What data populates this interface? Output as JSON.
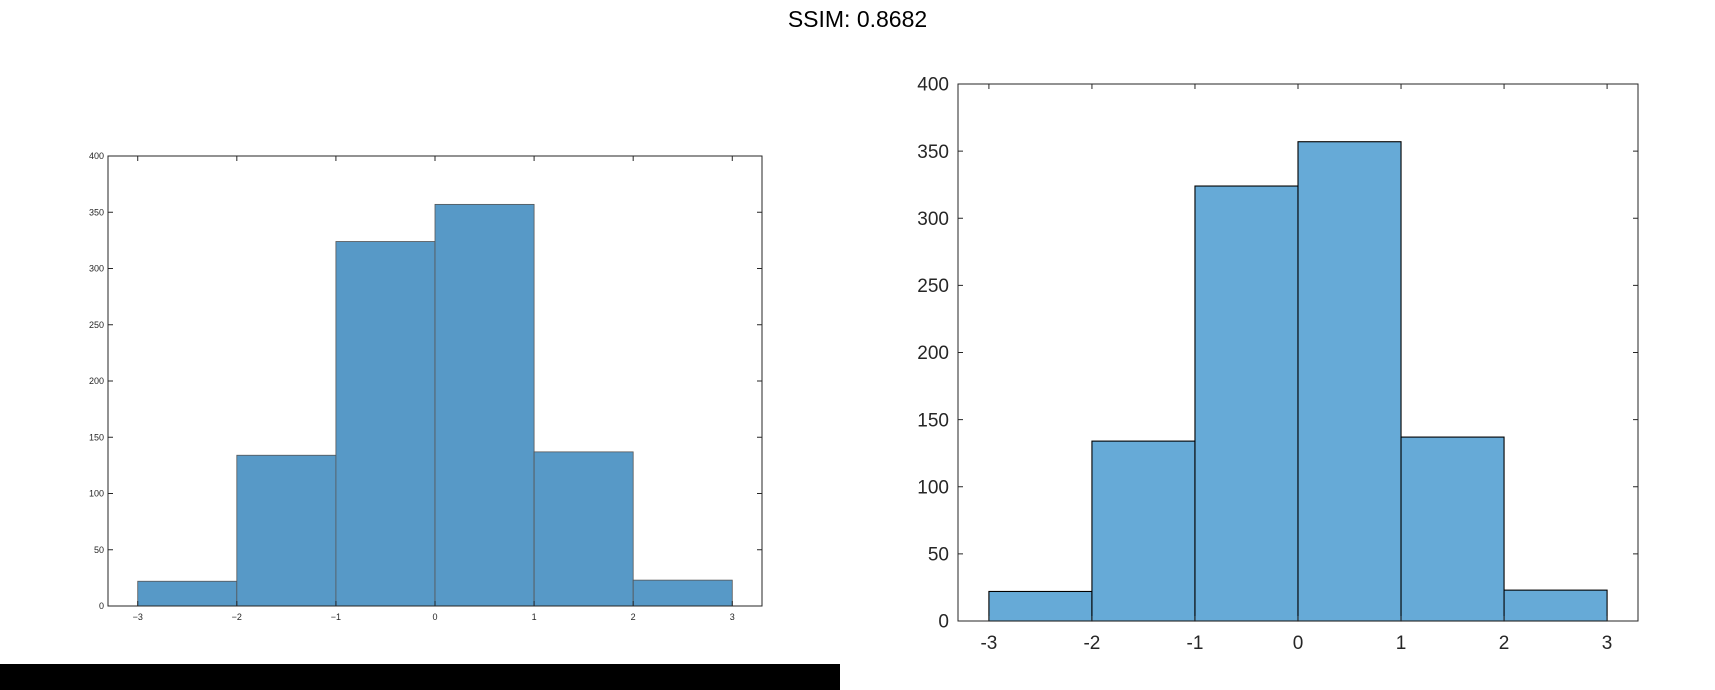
{
  "title": "SSIM: 0.8682",
  "colors": {
    "bar_left": "#5799C7",
    "bar_right": "#66AAD7",
    "edge_left": "#555555",
    "edge_right": "#000000",
    "axis": "#262626"
  },
  "chart_data": [
    {
      "type": "bar",
      "panel": "left",
      "bin_edges": [
        -3,
        -2,
        -1,
        0,
        1,
        2,
        3
      ],
      "values": [
        22,
        134,
        324,
        357,
        137,
        23
      ],
      "xlim": [
        -3.3,
        3.3
      ],
      "ylim": [
        0,
        400
      ],
      "xticks": [
        -3,
        -2,
        -1,
        0,
        1,
        2,
        3
      ],
      "xtick_labels": [
        "−3",
        "−2",
        "−1",
        "0",
        "1",
        "2",
        "3"
      ],
      "yticks": [
        0,
        50,
        100,
        150,
        200,
        250,
        300,
        350,
        400
      ],
      "ytick_labels": [
        "0",
        "50",
        "100",
        "150",
        "200",
        "250",
        "300",
        "350",
        "400"
      ],
      "grid": false
    },
    {
      "type": "bar",
      "panel": "right",
      "bin_edges": [
        -3,
        -2,
        -1,
        0,
        1,
        2,
        3
      ],
      "values": [
        22,
        134,
        324,
        357,
        137,
        23
      ],
      "xlim": [
        -3.3,
        3.3
      ],
      "ylim": [
        0,
        400
      ],
      "xticks": [
        -3,
        -2,
        -1,
        0,
        1,
        2,
        3
      ],
      "xtick_labels": [
        "-3",
        "-2",
        "-1",
        "0",
        "1",
        "2",
        "3"
      ],
      "yticks": [
        0,
        50,
        100,
        150,
        200,
        250,
        300,
        350,
        400
      ],
      "ytick_labels": [
        "0",
        "50",
        "100",
        "150",
        "200",
        "250",
        "300",
        "350",
        "400"
      ],
      "grid": false
    }
  ]
}
